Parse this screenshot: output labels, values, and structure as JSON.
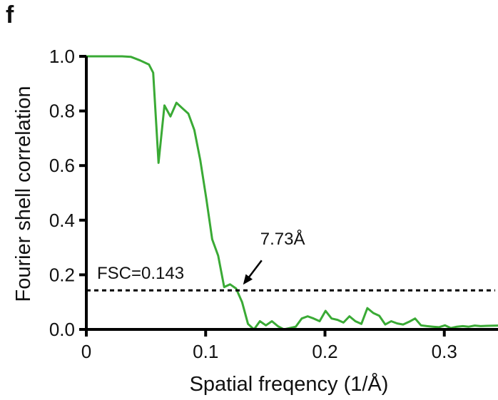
{
  "panel_label": "f",
  "chart_data": {
    "type": "line",
    "xlabel": "Spatial freqency (1/Å)",
    "ylabel": "Fourier shell correlation",
    "xlim": [
      0,
      0.345
    ],
    "ylim": [
      0,
      1.0
    ],
    "x_ticks": [
      0,
      0.1,
      0.2,
      0.3
    ],
    "x_tick_labels": [
      "0",
      "0.1",
      "0.2",
      "0.3"
    ],
    "y_ticks": [
      0,
      0.2,
      0.4,
      0.6,
      0.8,
      1.0
    ],
    "y_tick_labels": [
      "0.0",
      "0.2",
      "0.4",
      "0.6",
      "0.8",
      "1.0"
    ],
    "grid": false,
    "series": [
      {
        "color": "#3aaa35",
        "x": [
          0,
          0.0075,
          0.015,
          0.0225,
          0.03,
          0.0375,
          0.045,
          0.0525,
          0.056,
          0.0605,
          0.0655,
          0.0705,
          0.0755,
          0.0805,
          0.0855,
          0.0905,
          0.0955,
          0.1005,
          0.1055,
          0.1105,
          0.1155,
          0.1205,
          0.1255,
          0.1305,
          0.1355,
          0.1405,
          0.1455,
          0.1505,
          0.1555,
          0.1605,
          0.1655,
          0.1705,
          0.1755,
          0.1805,
          0.1855,
          0.1905,
          0.1955,
          0.2005,
          0.2055,
          0.2105,
          0.2155,
          0.2205,
          0.2255,
          0.2305,
          0.2355,
          0.2405,
          0.2455,
          0.2505,
          0.2555,
          0.2605,
          0.2655,
          0.2705,
          0.2755,
          0.2805,
          0.2855,
          0.2905,
          0.2955,
          0.3005,
          0.3055,
          0.3105,
          0.3155,
          0.3205,
          0.3255,
          0.3305,
          0.3355,
          0.345
        ],
        "y": [
          1.0,
          1.0,
          1.0,
          1.0,
          1.0,
          0.998,
          0.985,
          0.97,
          0.94,
          0.61,
          0.82,
          0.78,
          0.83,
          0.81,
          0.79,
          0.73,
          0.62,
          0.48,
          0.33,
          0.27,
          0.155,
          0.165,
          0.15,
          0.1,
          0.02,
          0.0,
          0.03,
          0.015,
          0.03,
          0.012,
          0.0,
          0.005,
          0.01,
          0.04,
          0.048,
          0.04,
          0.03,
          0.068,
          0.04,
          0.035,
          0.025,
          0.048,
          0.03,
          0.02,
          0.078,
          0.06,
          0.05,
          0.018,
          0.03,
          0.022,
          0.018,
          0.028,
          0.04,
          0.015,
          0.012,
          0.01,
          0.008,
          0.015,
          0.005,
          0.01,
          0.012,
          0.01,
          0.014,
          0.012,
          0.013,
          0.014
        ]
      }
    ],
    "threshold": {
      "value": 0.143,
      "label": "FSC=0.143",
      "style": "dotted"
    },
    "annotation": {
      "label": "7.73Å",
      "x": 0.129,
      "y": 0.143,
      "arrow": true
    }
  }
}
